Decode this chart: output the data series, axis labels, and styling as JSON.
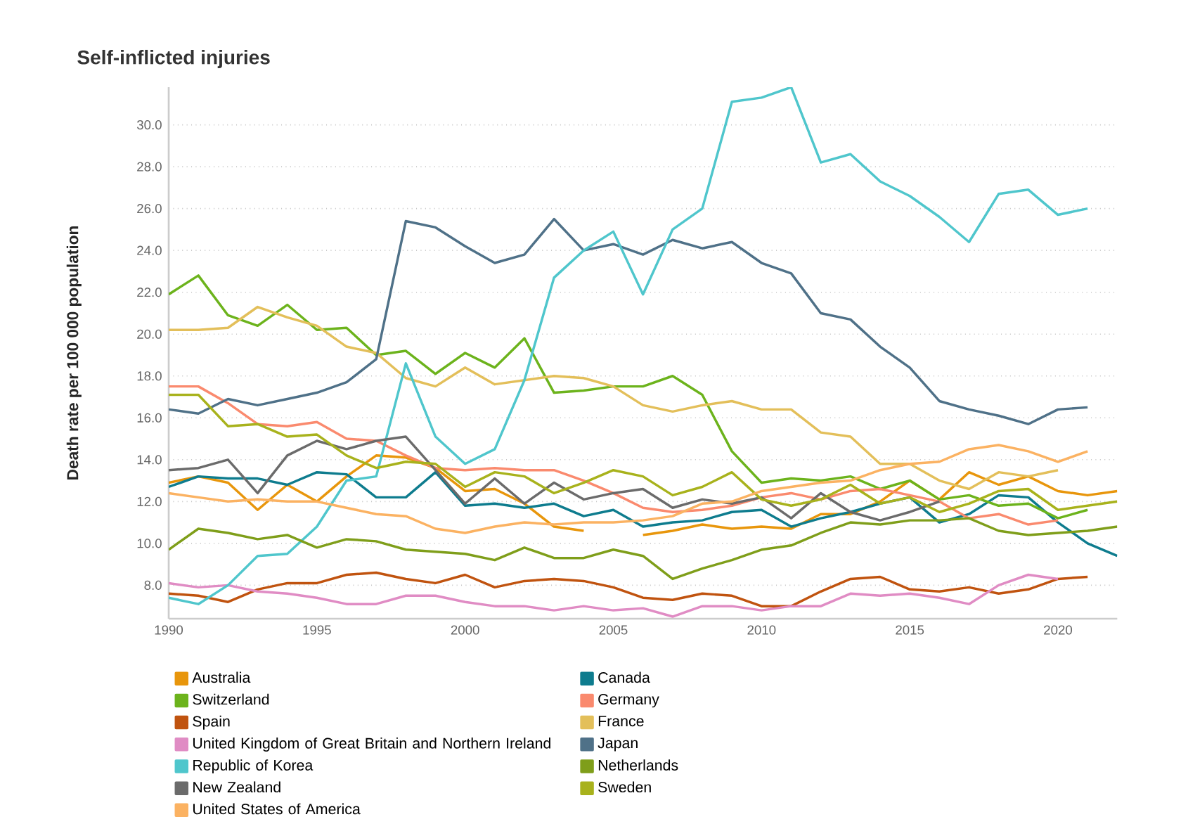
{
  "chart_data": {
    "type": "line",
    "title": "Self-inflicted injuries",
    "ylabel": "Death rate per 100 000 population",
    "x": [
      1990,
      1991,
      1992,
      1993,
      1994,
      1995,
      1996,
      1997,
      1998,
      1999,
      2000,
      2001,
      2002,
      2003,
      2004,
      2005,
      2006,
      2007,
      2008,
      2009,
      2010,
      2011,
      2012,
      2013,
      2014,
      2015,
      2016,
      2017,
      2018,
      2019,
      2020,
      2021,
      2022
    ],
    "xlim": [
      1990,
      2022
    ],
    "xticks": [
      1990,
      1995,
      2000,
      2005,
      2010,
      2015,
      2020
    ],
    "ylim": [
      6.4,
      31.8
    ],
    "yticks": [
      {
        "value": 8,
        "label": "8.0"
      },
      {
        "value": 10,
        "label": "10.0"
      },
      {
        "value": 12,
        "label": "12.0"
      },
      {
        "value": 14,
        "label": "14.0"
      },
      {
        "value": 16,
        "label": "16.0"
      },
      {
        "value": 18,
        "label": "18.0"
      },
      {
        "value": 20,
        "label": "20.0"
      },
      {
        "value": 22,
        "label": "22.0"
      },
      {
        "value": 24,
        "label": "24.0"
      },
      {
        "value": 26,
        "label": "26.0"
      },
      {
        "value": 28,
        "label": "28.0"
      },
      {
        "value": 30,
        "label": "30.0"
      }
    ],
    "grid": "y",
    "legend": "bottom",
    "marker": "none",
    "line_style": "solid",
    "series": [
      {
        "name": "Australia",
        "color": "#e8960c",
        "values": [
          12.9,
          13.2,
          12.9,
          11.6,
          12.8,
          12.0,
          13.2,
          14.2,
          14.1,
          13.6,
          12.5,
          12.6,
          11.9,
          10.8,
          10.6,
          null,
          10.4,
          10.6,
          10.9,
          10.7,
          10.8,
          10.7,
          11.4,
          11.4,
          12.0,
          13.0,
          12.1,
          13.4,
          12.8,
          13.2,
          12.5,
          12.3,
          12.5
        ]
      },
      {
        "name": "Canada",
        "color": "#0e7c8e",
        "values": [
          12.7,
          13.2,
          13.1,
          13.1,
          12.8,
          13.4,
          13.3,
          12.2,
          12.2,
          13.4,
          11.8,
          11.9,
          11.7,
          11.9,
          11.3,
          11.6,
          10.8,
          11.0,
          11.1,
          11.5,
          11.6,
          10.8,
          11.2,
          11.5,
          11.9,
          12.2,
          11.0,
          11.4,
          12.3,
          12.2,
          11.0,
          10.0,
          9.4
        ]
      },
      {
        "name": "Switzerland",
        "color": "#6cb31c",
        "values": [
          21.9,
          22.8,
          20.9,
          20.4,
          21.4,
          20.2,
          20.3,
          19.0,
          19.2,
          18.1,
          19.1,
          18.4,
          19.8,
          17.2,
          17.3,
          17.5,
          17.5,
          18.0,
          17.1,
          14.4,
          12.9,
          13.1,
          13.0,
          13.2,
          12.6,
          13.0,
          12.1,
          12.3,
          11.8,
          11.9,
          11.2,
          11.6,
          null
        ]
      },
      {
        "name": "Germany",
        "color": "#fa8a6e",
        "values": [
          17.5,
          17.5,
          16.7,
          15.7,
          15.6,
          15.8,
          15.0,
          14.9,
          14.2,
          13.6,
          13.5,
          13.6,
          13.5,
          13.5,
          13.0,
          12.4,
          11.7,
          11.5,
          11.6,
          11.8,
          12.2,
          12.4,
          12.1,
          12.5,
          12.6,
          12.3,
          12.0,
          11.2,
          11.4,
          10.9,
          11.1,
          null,
          null
        ]
      },
      {
        "name": "Spain",
        "color": "#c0530f",
        "values": [
          7.6,
          7.5,
          7.2,
          7.8,
          8.1,
          8.1,
          8.5,
          8.6,
          8.3,
          8.1,
          8.5,
          7.9,
          8.2,
          8.3,
          8.2,
          7.9,
          7.4,
          7.3,
          7.6,
          7.5,
          7.0,
          7.0,
          7.7,
          8.3,
          8.4,
          7.8,
          7.7,
          7.9,
          7.6,
          7.8,
          8.3,
          8.4,
          null
        ]
      },
      {
        "name": "France",
        "color": "#e3bf5a",
        "values": [
          20.2,
          20.2,
          20.3,
          21.3,
          20.8,
          20.4,
          19.4,
          19.1,
          17.9,
          17.5,
          18.4,
          17.6,
          17.8,
          18.0,
          17.9,
          17.5,
          16.6,
          16.3,
          16.6,
          16.8,
          16.4,
          16.4,
          15.3,
          15.1,
          13.8,
          13.8,
          13.0,
          12.6,
          13.4,
          13.2,
          13.5,
          null,
          null
        ]
      },
      {
        "name": "United Kingdom of Great Britain and Northern Ireland",
        "color": "#e08cc4",
        "values": [
          8.1,
          7.9,
          8.0,
          7.7,
          7.6,
          7.4,
          7.1,
          7.1,
          7.5,
          7.5,
          7.2,
          7.0,
          7.0,
          6.8,
          7.0,
          6.8,
          6.9,
          6.5,
          7.0,
          7.0,
          6.8,
          7.0,
          7.0,
          7.6,
          7.5,
          7.6,
          7.4,
          7.1,
          8.0,
          8.5,
          8.3,
          null,
          null
        ]
      },
      {
        "name": "Japan",
        "color": "#4f7188",
        "values": [
          16.4,
          16.2,
          16.9,
          16.6,
          16.9,
          17.2,
          17.7,
          18.8,
          25.4,
          25.1,
          24.2,
          23.4,
          23.8,
          25.5,
          24.0,
          24.3,
          23.8,
          24.5,
          24.1,
          24.4,
          23.4,
          22.9,
          21.0,
          20.7,
          19.4,
          18.4,
          16.8,
          16.4,
          16.1,
          15.7,
          16.4,
          16.5,
          null
        ]
      },
      {
        "name": "Republic of Korea",
        "color": "#4fc6cc",
        "values": [
          7.4,
          7.1,
          8.0,
          9.4,
          9.5,
          10.8,
          13.0,
          13.2,
          18.6,
          15.1,
          13.8,
          14.5,
          17.8,
          22.7,
          24.0,
          24.9,
          21.9,
          25.0,
          26.0,
          31.1,
          31.3,
          31.8,
          28.2,
          28.6,
          27.3,
          26.6,
          25.6,
          24.4,
          26.7,
          26.9,
          25.7,
          26.0,
          null
        ]
      },
      {
        "name": "Netherlands",
        "color": "#7f9e1a",
        "values": [
          9.7,
          10.7,
          10.5,
          10.2,
          10.4,
          9.8,
          10.2,
          10.1,
          9.7,
          9.6,
          9.5,
          9.2,
          9.8,
          9.3,
          9.3,
          9.7,
          9.4,
          8.3,
          8.8,
          9.2,
          9.7,
          9.9,
          10.5,
          11.0,
          10.9,
          11.1,
          11.1,
          11.2,
          10.6,
          10.4,
          10.5,
          10.6,
          10.8
        ]
      },
      {
        "name": "New Zealand",
        "color": "#6b6b6b",
        "values": [
          13.5,
          13.6,
          14.0,
          12.4,
          14.2,
          14.9,
          14.5,
          14.9,
          15.1,
          13.5,
          11.9,
          13.1,
          11.9,
          12.9,
          12.1,
          12.4,
          12.6,
          11.7,
          12.1,
          11.9,
          12.2,
          11.2,
          12.4,
          11.5,
          11.1,
          11.5,
          12.0,
          null,
          null,
          null,
          null,
          null,
          null
        ]
      },
      {
        "name": "Sweden",
        "color": "#a8b21c",
        "values": [
          17.1,
          17.1,
          15.6,
          15.7,
          15.1,
          15.2,
          14.2,
          13.6,
          13.9,
          13.8,
          12.7,
          13.4,
          13.2,
          12.4,
          12.9,
          13.5,
          13.2,
          12.3,
          12.7,
          13.4,
          12.1,
          11.8,
          12.1,
          12.8,
          11.9,
          12.2,
          11.5,
          11.9,
          12.5,
          12.6,
          11.6,
          11.8,
          12.0
        ]
      },
      {
        "name": "United States of America",
        "color": "#fbb262",
        "values": [
          12.4,
          12.2,
          12.0,
          12.1,
          12.0,
          12.0,
          11.7,
          11.4,
          11.3,
          10.7,
          10.5,
          10.8,
          11.0,
          10.9,
          11.0,
          11.0,
          11.1,
          11.3,
          11.9,
          12.0,
          12.5,
          12.7,
          12.9,
          13.0,
          13.5,
          13.8,
          13.9,
          14.5,
          14.7,
          14.4,
          13.9,
          14.4,
          null
        ]
      }
    ]
  }
}
